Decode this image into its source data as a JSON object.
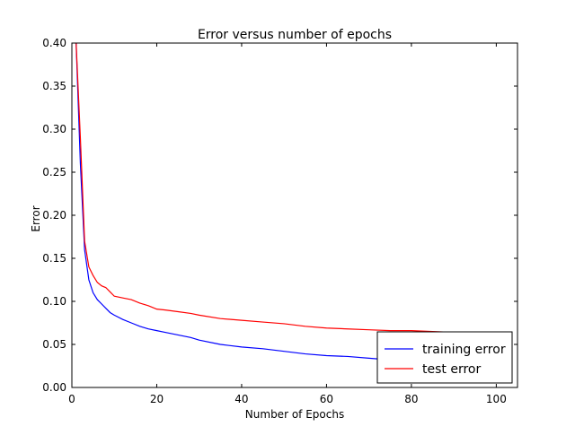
{
  "chart_data": {
    "type": "line",
    "title": "Error versus number of epochs",
    "xlabel": "Number of Epochs",
    "ylabel": "Error",
    "xlim": [
      0,
      105
    ],
    "ylim": [
      0.0,
      0.4
    ],
    "xticks": [
      0,
      20,
      40,
      60,
      80,
      100
    ],
    "yticks": [
      0.0,
      0.05,
      0.1,
      0.15,
      0.2,
      0.25,
      0.3,
      0.35,
      0.4
    ],
    "xtick_labels": [
      "0",
      "20",
      "40",
      "60",
      "80",
      "100"
    ],
    "ytick_labels": [
      "0.00",
      "0.05",
      "0.10",
      "0.15",
      "0.20",
      "0.25",
      "0.30",
      "0.35",
      "0.40"
    ],
    "grid": false,
    "legend_position": "lower-right",
    "series": [
      {
        "name": "training error",
        "color": "#0000ff",
        "x": [
          1,
          2,
          3,
          4,
          5,
          6,
          7,
          8,
          9,
          10,
          12,
          14,
          16,
          18,
          20,
          22,
          25,
          28,
          30,
          35,
          40,
          45,
          50,
          55,
          60,
          65,
          70,
          75,
          80,
          85,
          90,
          95,
          100
        ],
        "y": [
          0.4,
          0.26,
          0.16,
          0.125,
          0.11,
          0.102,
          0.097,
          0.092,
          0.087,
          0.084,
          0.079,
          0.075,
          0.071,
          0.068,
          0.066,
          0.064,
          0.061,
          0.058,
          0.055,
          0.05,
          0.047,
          0.045,
          0.042,
          0.039,
          0.037,
          0.036,
          0.034,
          0.032,
          0.031,
          0.03,
          0.029,
          0.028,
          0.027
        ]
      },
      {
        "name": "test error",
        "color": "#ff0000",
        "x": [
          1,
          2,
          3,
          4,
          5,
          6,
          7,
          8,
          9,
          10,
          12,
          14,
          16,
          18,
          20,
          22,
          25,
          28,
          30,
          35,
          40,
          45,
          50,
          55,
          60,
          65,
          70,
          75,
          80,
          85,
          90,
          95,
          100
        ],
        "y": [
          0.4,
          0.29,
          0.17,
          0.14,
          0.13,
          0.122,
          0.118,
          0.116,
          0.111,
          0.106,
          0.104,
          0.102,
          0.098,
          0.095,
          0.091,
          0.09,
          0.088,
          0.086,
          0.084,
          0.08,
          0.078,
          0.076,
          0.074,
          0.071,
          0.069,
          0.068,
          0.067,
          0.066,
          0.066,
          0.065,
          0.064,
          0.063,
          0.062
        ]
      }
    ]
  }
}
